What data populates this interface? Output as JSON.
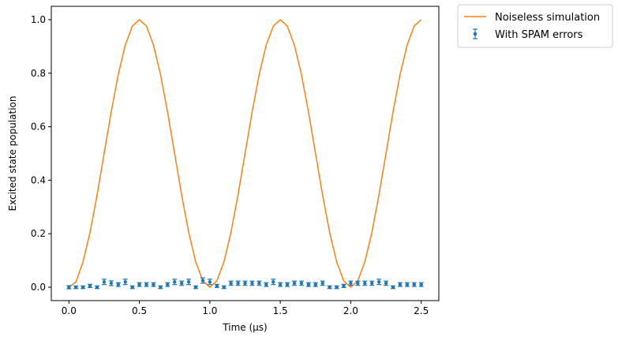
{
  "chart_data": {
    "type": "line",
    "xlabel": "Time (μs)",
    "ylabel": "Excited state population",
    "xlim": [
      -0.125,
      2.625
    ],
    "ylim": [
      -0.05,
      1.05
    ],
    "x_ticks": [
      0.0,
      0.5,
      1.0,
      1.5,
      2.0,
      2.5
    ],
    "x_tick_labels": [
      "0.0",
      "0.5",
      "1.0",
      "1.5",
      "2.0",
      "2.5"
    ],
    "y_ticks": [
      0.0,
      0.2,
      0.4,
      0.6,
      0.8,
      1.0
    ],
    "y_tick_labels": [
      "0.0",
      "0.2",
      "0.4",
      "0.6",
      "0.8",
      "1.0"
    ],
    "grid": false,
    "legend_placement": "outside-top-right",
    "series": [
      {
        "name": "Noiseless simulation",
        "kind": "line",
        "color": "#ff7f0e",
        "x": [
          0.0,
          0.05,
          0.1,
          0.15,
          0.2,
          0.25,
          0.3,
          0.35,
          0.4,
          0.45,
          0.5,
          0.55,
          0.6,
          0.65,
          0.7,
          0.75,
          0.8,
          0.85,
          0.9,
          0.95,
          1.0,
          1.05,
          1.1,
          1.15,
          1.2,
          1.25,
          1.3,
          1.35,
          1.4,
          1.45,
          1.5,
          1.55,
          1.6,
          1.65,
          1.7,
          1.75,
          1.8,
          1.85,
          1.9,
          1.95,
          2.0,
          2.05,
          2.1,
          2.15,
          2.2,
          2.25,
          2.3,
          2.35,
          2.4,
          2.45,
          2.5
        ],
        "y": [
          0.0,
          0.02,
          0.095,
          0.205,
          0.345,
          0.5,
          0.655,
          0.795,
          0.905,
          0.976,
          1.0,
          0.976,
          0.905,
          0.795,
          0.655,
          0.5,
          0.345,
          0.205,
          0.095,
          0.024,
          0.0,
          0.024,
          0.095,
          0.205,
          0.345,
          0.5,
          0.655,
          0.795,
          0.905,
          0.976,
          1.0,
          0.976,
          0.905,
          0.795,
          0.655,
          0.5,
          0.345,
          0.205,
          0.095,
          0.024,
          0.0,
          0.024,
          0.095,
          0.205,
          0.345,
          0.5,
          0.655,
          0.795,
          0.905,
          0.976,
          1.0
        ]
      },
      {
        "name": "With SPAM errors",
        "kind": "errorbar",
        "color": "#1f77b4",
        "x": [
          0.0,
          0.05,
          0.1,
          0.15,
          0.2,
          0.25,
          0.3,
          0.35,
          0.4,
          0.45,
          0.5,
          0.55,
          0.6,
          0.65,
          0.7,
          0.75,
          0.8,
          0.85,
          0.9,
          0.95,
          1.0,
          1.05,
          1.1,
          1.15,
          1.2,
          1.25,
          1.3,
          1.35,
          1.4,
          1.45,
          1.5,
          1.55,
          1.6,
          1.65,
          1.7,
          1.75,
          1.8,
          1.85,
          1.9,
          1.95,
          2.0,
          2.05,
          2.1,
          2.15,
          2.2,
          2.25,
          2.3,
          2.35,
          2.4,
          2.45,
          2.5
        ],
        "y": [
          0.0,
          0.0,
          0.0,
          0.005,
          0.0,
          0.02,
          0.015,
          0.01,
          0.02,
          0.0,
          0.01,
          0.01,
          0.01,
          0.0,
          0.01,
          0.02,
          0.015,
          0.02,
          0.0,
          0.025,
          0.02,
          0.005,
          0.0,
          0.015,
          0.015,
          0.015,
          0.015,
          0.015,
          0.01,
          0.02,
          0.01,
          0.01,
          0.015,
          0.015,
          0.01,
          0.01,
          0.015,
          0.0,
          0.0,
          0.005,
          0.015,
          0.015,
          0.015,
          0.015,
          0.02,
          0.015,
          0.0,
          0.01,
          0.01,
          0.01,
          0.01
        ],
        "err": [
          0.006,
          0.005,
          0.005,
          0.006,
          0.005,
          0.01,
          0.009,
          0.007,
          0.01,
          0.005,
          0.007,
          0.007,
          0.007,
          0.005,
          0.007,
          0.01,
          0.008,
          0.01,
          0.005,
          0.01,
          0.01,
          0.006,
          0.005,
          0.008,
          0.008,
          0.008,
          0.008,
          0.008,
          0.007,
          0.01,
          0.007,
          0.007,
          0.008,
          0.008,
          0.007,
          0.007,
          0.008,
          0.005,
          0.005,
          0.006,
          0.008,
          0.008,
          0.008,
          0.008,
          0.01,
          0.008,
          0.005,
          0.007,
          0.007,
          0.007,
          0.007
        ]
      }
    ]
  }
}
